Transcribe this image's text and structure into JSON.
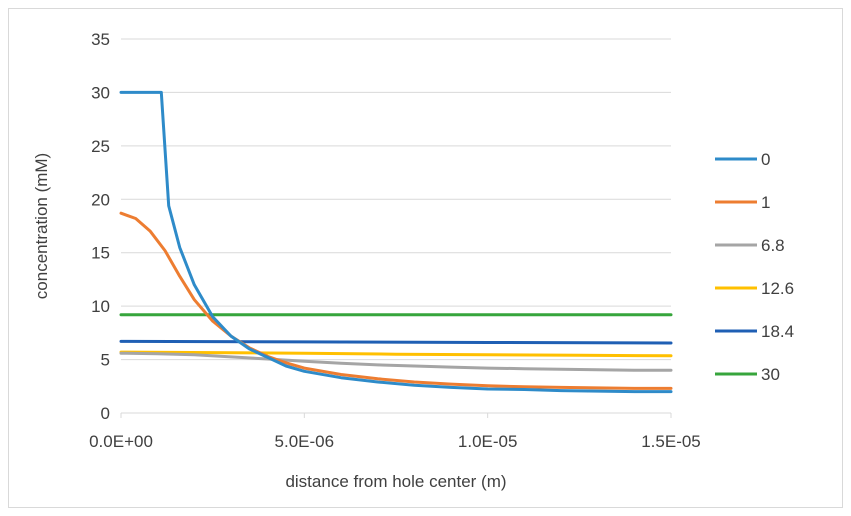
{
  "chart_data": {
    "type": "line",
    "title": "",
    "xlabel": "distance from hole center (m)",
    "ylabel": "concentration (mM)",
    "xlim": [
      0,
      1.5e-05
    ],
    "ylim": [
      0,
      35
    ],
    "xticks": [
      0,
      5e-06,
      1e-05,
      1.5e-05
    ],
    "xtick_labels": [
      "0.0E+00",
      "5.0E-06",
      "1.0E-05",
      "1.5E-05"
    ],
    "yticks": [
      0,
      5,
      10,
      15,
      20,
      25,
      30,
      35
    ],
    "ytick_labels": [
      "0",
      "5",
      "10",
      "15",
      "20",
      "25",
      "30",
      "35"
    ],
    "grid": "horizontal",
    "legend_position": "right",
    "series": [
      {
        "name": "0",
        "color": "#2e8bc9",
        "x": [
          0,
          1e-06,
          1.1e-06,
          1.3e-06,
          1.6e-06,
          2e-06,
          2.5e-06,
          3e-06,
          3.5e-06,
          4e-06,
          4.5e-06,
          5e-06,
          6e-06,
          7e-06,
          8e-06,
          9e-06,
          1e-05,
          1.1e-05,
          1.2e-05,
          1.3e-05,
          1.4e-05,
          1.5e-05
        ],
        "values": [
          30,
          30,
          30,
          19.4,
          15.5,
          12.0,
          9.0,
          7.2,
          6.0,
          5.2,
          4.4,
          3.9,
          3.3,
          2.9,
          2.6,
          2.4,
          2.25,
          2.2,
          2.1,
          2.05,
          2.0,
          2.0
        ]
      },
      {
        "name": "1",
        "color": "#ed7d31",
        "x": [
          0,
          4e-07,
          8e-07,
          1.2e-06,
          1.6e-06,
          2e-06,
          2.5e-06,
          3e-06,
          3.5e-06,
          4e-06,
          4.5e-06,
          5e-06,
          6e-06,
          7e-06,
          8e-06,
          9e-06,
          1e-05,
          1.1e-05,
          1.2e-05,
          1.3e-05,
          1.4e-05,
          1.5e-05
        ],
        "values": [
          18.7,
          18.2,
          17.0,
          15.2,
          12.8,
          10.6,
          8.6,
          7.2,
          6.1,
          5.3,
          4.7,
          4.2,
          3.6,
          3.2,
          2.9,
          2.7,
          2.55,
          2.45,
          2.4,
          2.35,
          2.3,
          2.3
        ]
      },
      {
        "name": "6.8",
        "color": "#a5a5a5",
        "x": [
          0,
          1e-06,
          2e-06,
          3e-06,
          4e-06,
          5e-06,
          6e-06,
          7e-06,
          8e-06,
          9e-06,
          1e-05,
          1.1e-05,
          1.2e-05,
          1.3e-05,
          1.4e-05,
          1.5e-05
        ],
        "values": [
          5.6,
          5.55,
          5.45,
          5.25,
          5.05,
          4.85,
          4.65,
          4.5,
          4.4,
          4.3,
          4.2,
          4.15,
          4.1,
          4.05,
          4.0,
          4.0
        ]
      },
      {
        "name": "12.6",
        "color": "#ffc000",
        "x": [
          0,
          2.5e-06,
          5e-06,
          7.5e-06,
          1e-05,
          1.25e-05,
          1.5e-05
        ],
        "values": [
          5.7,
          5.65,
          5.6,
          5.5,
          5.45,
          5.4,
          5.35
        ]
      },
      {
        "name": "18.4",
        "color": "#1f5fb4",
        "x": [
          0,
          5e-06,
          1e-05,
          1.5e-05
        ],
        "values": [
          6.7,
          6.65,
          6.6,
          6.55
        ]
      },
      {
        "name": "30",
        "color": "#37a53c",
        "x": [
          0,
          5e-06,
          1e-05,
          1.5e-05
        ],
        "values": [
          9.2,
          9.2,
          9.2,
          9.2
        ]
      }
    ]
  }
}
